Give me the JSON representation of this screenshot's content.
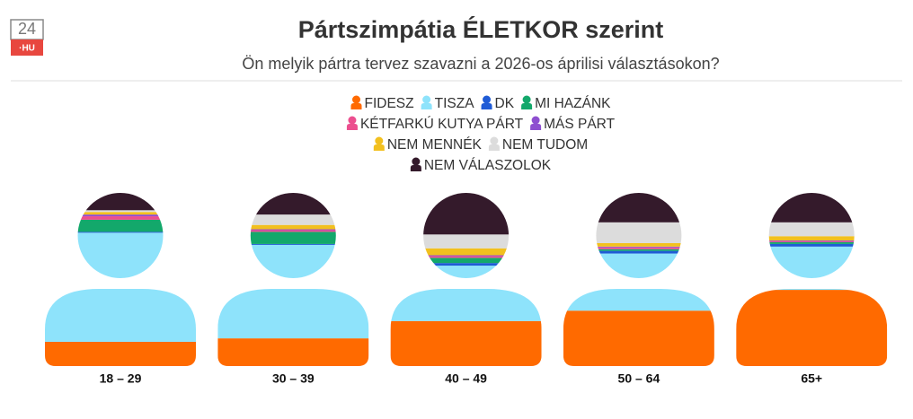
{
  "logo": {
    "top": "24",
    "bottom": "·HU"
  },
  "chart_data": {
    "type": "person-stack",
    "title": "Pártszimpátia ÉLETKOR szerint",
    "subtitle": "Ön melyik pártra tervez szavazni a 2026-os áprilisi választásokon?",
    "categories": [
      "18 – 29",
      "30 – 39",
      "40 – 49",
      "50 – 64",
      "65+"
    ],
    "ylim": [
      0,
      100
    ],
    "series": [
      {
        "name": "FIDESZ",
        "color": "#ff6a00",
        "values": [
          14,
          16,
          26,
          32,
          44
        ]
      },
      {
        "name": "TISZA",
        "color": "#8ee3fb",
        "values": [
          63,
          54,
          32,
          33,
          25
        ]
      },
      {
        "name": "DK",
        "color": "#1f5bd6",
        "values": [
          0.5,
          0.5,
          1.5,
          1.5,
          1.5
        ]
      },
      {
        "name": "MI HAZÁNK",
        "color": "#13a86b",
        "values": [
          7,
          7,
          3,
          1,
          1
        ]
      },
      {
        "name": "KÉTFARKÚ KUTYA PÁRT",
        "color": "#ec4f8f",
        "values": [
          2,
          1,
          1,
          1,
          0.5
        ]
      },
      {
        "name": "MÁS PÁRT",
        "color": "#8e4fd0",
        "values": [
          1,
          0.5,
          0.5,
          0.5,
          0.5
        ]
      },
      {
        "name": "NEM MENNÉK",
        "color": "#f2c01e",
        "values": [
          1.5,
          2.5,
          4,
          2,
          2.5
        ]
      },
      {
        "name": "NEM TUDOM",
        "color": "#dcdcdc",
        "values": [
          1,
          6,
          8,
          12,
          8
        ]
      },
      {
        "name": "NEM VÁLASZOLOK",
        "color": "#341a2b",
        "values": [
          10,
          12.5,
          24,
          17,
          17
        ]
      }
    ]
  }
}
